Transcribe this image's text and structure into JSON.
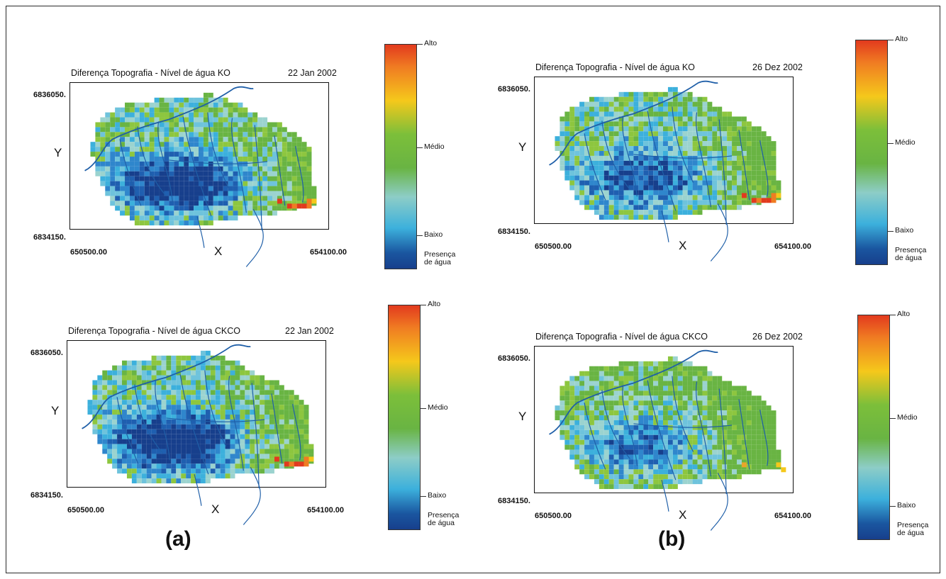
{
  "panels": [
    {
      "title": "Diferença Topografia - Nível de água KO",
      "date": "22 Jan 2002",
      "y_top": "6836050.",
      "y_bottom": "6834150.",
      "x_left": "650500.00",
      "x_right": "654100.00",
      "x_axis": "X",
      "y_axis": "Y"
    },
    {
      "title": "Diferença Topografia - Nível de água KO",
      "date": "26 Dez 2002",
      "y_top": "6836050.",
      "y_bottom": "6834150.",
      "x_left": "650500.00",
      "x_right": "654100.00",
      "x_axis": "X",
      "y_axis": "Y"
    },
    {
      "title": "Diferença Topografia - Nível de água CKCO",
      "date": "22 Jan 2002",
      "y_top": "6836050.",
      "y_bottom": "6834150.",
      "x_left": "650500.00",
      "x_right": "654100.00",
      "x_axis": "X",
      "y_axis": "Y"
    },
    {
      "title": "Diferença Topografia - Nível de água CKCO",
      "date": "26 Dez 2002",
      "y_top": "6836050.",
      "y_bottom": "6834150.",
      "x_left": "650500.00",
      "x_right": "654100.00",
      "x_axis": "X",
      "y_axis": "Y"
    }
  ],
  "legend": {
    "high": "Alto",
    "mid": "Médio",
    "low": "Baixo",
    "water_line1": "Presença",
    "water_line2": "de água"
  },
  "column_labels": {
    "a": "(a)",
    "b": "(b)"
  },
  "colors": {
    "water": "#173f8c",
    "low": "#3cb0dc",
    "medium": "#69b443",
    "high_mid": "#f5c81b",
    "high": "#e23a1e",
    "river": "#1f5fa8"
  }
}
